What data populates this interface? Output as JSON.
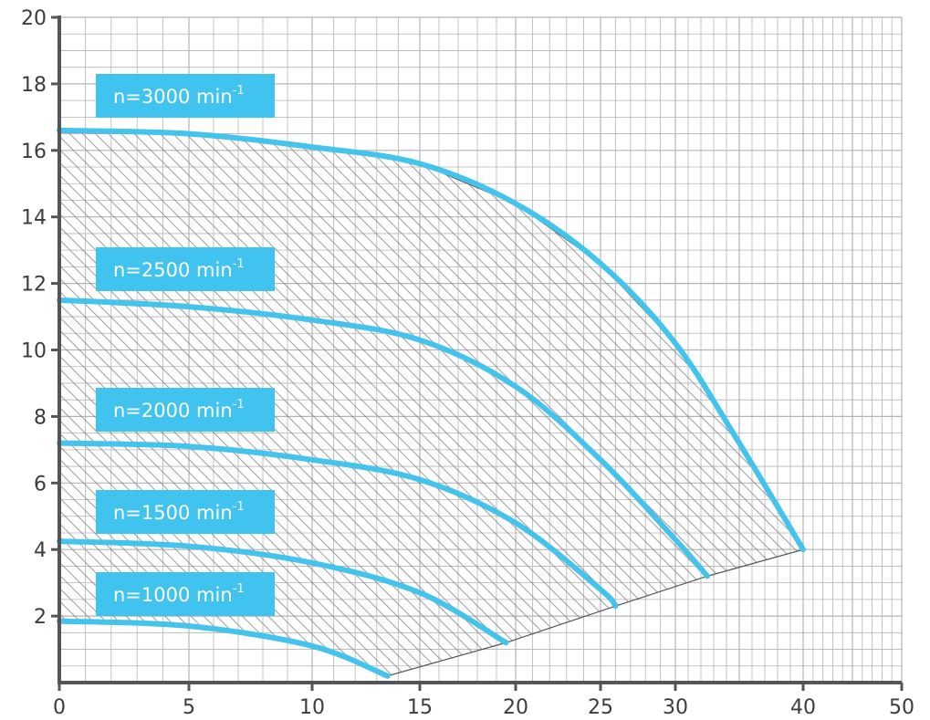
{
  "chart_data": {
    "type": "line",
    "title": "",
    "xlabel": "",
    "ylabel": "",
    "xlim": [
      0,
      50
    ],
    "ylim": [
      0,
      20
    ],
    "x_ticks": [
      0,
      5,
      10,
      15,
      20,
      25,
      30,
      40,
      50
    ],
    "x_tick_labels": [
      "0",
      "5",
      "10",
      "15",
      "20",
      "25",
      "30",
      "40",
      "50"
    ],
    "y_ticks": [
      2,
      4,
      6,
      8,
      10,
      12,
      14,
      16,
      18,
      20
    ],
    "y_tick_labels": [
      "2",
      "4",
      "6",
      "8",
      "10",
      "12",
      "14",
      "16",
      "18",
      "20"
    ],
    "grid": true,
    "x_scale": "non-linear",
    "hatched_operating_region": true,
    "colors": {
      "curve": "#44c4ed",
      "label_box": "#41c3ef",
      "grid": "#b4b4b4",
      "axis": "#555555",
      "hatch": "#7d7d7d"
    },
    "series": [
      {
        "name": "n=3000 min-1",
        "label_main": "n=3000 min",
        "label_sup": "-1",
        "x": [
          0,
          5,
          10,
          15,
          20,
          25,
          30,
          35,
          40
        ],
        "y": [
          16.6,
          16.5,
          16.1,
          15.6,
          14.4,
          12.6,
          10.2,
          7.2,
          4.0
        ]
      },
      {
        "name": "n=2500 min-1",
        "label_main": "n=2500 min",
        "label_sup": "-1",
        "x": [
          0,
          5,
          10,
          15,
          20,
          25,
          30,
          32.5
        ],
        "y": [
          11.5,
          11.3,
          10.9,
          10.3,
          8.9,
          6.7,
          4.3,
          3.2
        ]
      },
      {
        "name": "n=2000 min-1",
        "label_main": "n=2000 min",
        "label_sup": "-1",
        "x": [
          0,
          5,
          10,
          15,
          20,
          25,
          26
        ],
        "y": [
          7.2,
          7.1,
          6.7,
          6.1,
          4.8,
          2.8,
          2.3
        ]
      },
      {
        "name": "n=1500 min-1",
        "label_main": "n=1500 min",
        "label_sup": "-1",
        "x": [
          0,
          5,
          10,
          15,
          19.5
        ],
        "y": [
          4.25,
          4.1,
          3.6,
          2.7,
          1.2
        ]
      },
      {
        "name": "n=1000 min-1",
        "label_main": "n=1000 min",
        "label_sup": "-1",
        "x": [
          0,
          5,
          10,
          13.5
        ],
        "y": [
          1.85,
          1.7,
          1.1,
          0.2
        ]
      }
    ]
  }
}
